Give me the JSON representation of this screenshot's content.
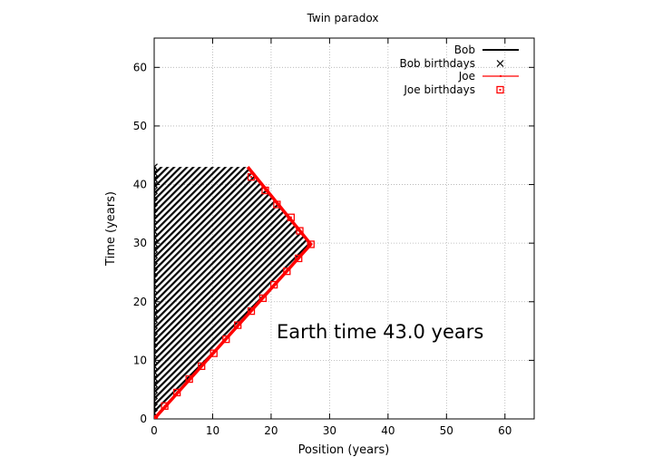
{
  "chart_data": {
    "type": "line",
    "title": "Twin paradox",
    "xlabel": "Position (years)",
    "ylabel": "Time (years)",
    "xlim": [
      0,
      65
    ],
    "ylim": [
      0,
      65
    ],
    "xticks": [
      0,
      10,
      20,
      30,
      40,
      50,
      60
    ],
    "yticks": [
      0,
      10,
      20,
      30,
      40,
      50,
      60
    ],
    "grid": true,
    "legend_position": "top-right",
    "annotation": "Earth time 43.0 years",
    "series": [
      {
        "name": "Bob",
        "kind": "line",
        "color": "#000000",
        "x": [
          0,
          0
        ],
        "y": [
          0,
          43
        ]
      },
      {
        "name": "Bob birthdays",
        "kind": "points",
        "marker": "x",
        "color": "#000000",
        "x": [
          0,
          0,
          0,
          0,
          0,
          0,
          0,
          0,
          0,
          0,
          0,
          0,
          0,
          0,
          0,
          0,
          0,
          0,
          0,
          0,
          0,
          0,
          0,
          0,
          0,
          0,
          0,
          0,
          0,
          0,
          0,
          0,
          0,
          0,
          0,
          0,
          0,
          0,
          0,
          0,
          0,
          0,
          0,
          0
        ],
        "y": [
          0,
          1,
          2,
          3,
          4,
          5,
          6,
          7,
          8,
          9,
          10,
          11,
          12,
          13,
          14,
          15,
          16,
          17,
          18,
          19,
          20,
          21,
          22,
          23,
          24,
          25,
          26,
          27,
          28,
          29,
          30,
          31,
          32,
          33,
          34,
          35,
          36,
          37,
          38,
          39,
          40,
          41,
          42,
          43
        ]
      },
      {
        "name": "Joe",
        "kind": "line",
        "color": "#ff0000",
        "x": [
          0,
          26.8,
          16.0
        ],
        "y": [
          0,
          29.8,
          43.0
        ]
      },
      {
        "name": "Joe birthdays",
        "kind": "points",
        "marker": "square",
        "color": "#ff0000",
        "x": [
          0,
          1.8,
          3.9,
          6.0,
          8.1,
          10.2,
          12.3,
          14.3,
          16.6,
          18.6,
          20.5,
          22.7,
          24.7,
          26.8,
          24.9,
          23.4,
          21.0,
          19.0,
          16.6
        ],
        "y": [
          0,
          2.2,
          4.5,
          6.8,
          9.0,
          11.2,
          13.6,
          16.0,
          18.4,
          20.6,
          22.9,
          25.2,
          27.4,
          29.8,
          32.1,
          34.4,
          36.6,
          39.0,
          41.3
        ]
      }
    ]
  }
}
